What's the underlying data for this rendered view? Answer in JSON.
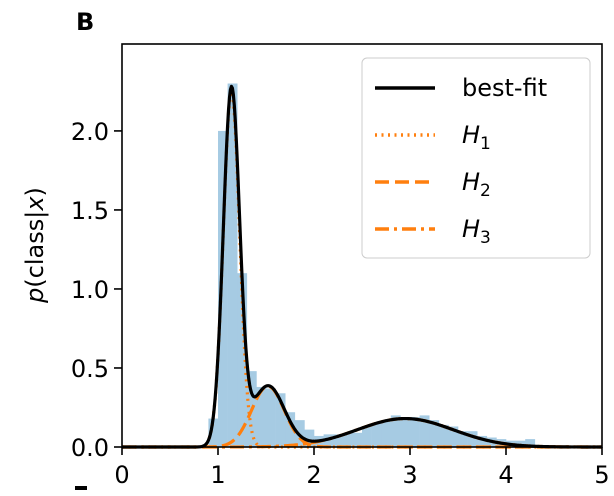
{
  "panel_label": "B",
  "chart_data": {
    "type": "histogram",
    "xlabel": "",
    "ylabel": "p(class|x)",
    "xlim": [
      0,
      5
    ],
    "ylim": [
      0,
      2.55
    ],
    "xticks": [
      "0",
      "1",
      "2",
      "3",
      "4",
      "5"
    ],
    "yticks": [
      "0.0",
      "0.5",
      "1.0",
      "1.5",
      "2.0"
    ],
    "grid": false,
    "legend_placement": "top-right",
    "colors": {
      "histogram": "#a6cbe3",
      "best_fit": "#000000",
      "components": "#ff7f0e"
    },
    "histogram": {
      "bin_width": 0.1,
      "bins": [
        {
          "x0": 0.9,
          "value": 0.18
        },
        {
          "x0": 1.0,
          "value": 2.0
        },
        {
          "x0": 1.1,
          "value": 2.3
        },
        {
          "x0": 1.2,
          "value": 1.1
        },
        {
          "x0": 1.3,
          "value": 0.48
        },
        {
          "x0": 1.4,
          "value": 0.38
        },
        {
          "x0": 1.5,
          "value": 0.37
        },
        {
          "x0": 1.6,
          "value": 0.34
        },
        {
          "x0": 1.7,
          "value": 0.22
        },
        {
          "x0": 1.8,
          "value": 0.17
        },
        {
          "x0": 1.9,
          "value": 0.11
        },
        {
          "x0": 2.0,
          "value": 0.07
        },
        {
          "x0": 2.1,
          "value": 0.08
        },
        {
          "x0": 2.2,
          "value": 0.08
        },
        {
          "x0": 2.3,
          "value": 0.09
        },
        {
          "x0": 2.4,
          "value": 0.09
        },
        {
          "x0": 2.5,
          "value": 0.13
        },
        {
          "x0": 2.6,
          "value": 0.15
        },
        {
          "x0": 2.7,
          "value": 0.17
        },
        {
          "x0": 2.8,
          "value": 0.2
        },
        {
          "x0": 2.9,
          "value": 0.17
        },
        {
          "x0": 3.0,
          "value": 0.19
        },
        {
          "x0": 3.1,
          "value": 0.2
        },
        {
          "x0": 3.2,
          "value": 0.17
        },
        {
          "x0": 3.3,
          "value": 0.14
        },
        {
          "x0": 3.4,
          "value": 0.13
        },
        {
          "x0": 3.5,
          "value": 0.1
        },
        {
          "x0": 3.6,
          "value": 0.1
        },
        {
          "x0": 3.7,
          "value": 0.07
        },
        {
          "x0": 3.8,
          "value": 0.06
        },
        {
          "x0": 3.9,
          "value": 0.05
        },
        {
          "x0": 4.0,
          "value": 0.04
        },
        {
          "x0": 4.1,
          "value": 0.04
        },
        {
          "x0": 4.2,
          "value": 0.05
        },
        {
          "x0": 4.3,
          "value": 0.01
        }
      ]
    },
    "components": [
      {
        "name": "H1",
        "mean": 1.14,
        "sd": 0.085,
        "amplitude": 2.25
      },
      {
        "name": "H2",
        "mean": 1.52,
        "sd": 0.17,
        "amplitude": 0.385
      },
      {
        "name": "H3",
        "mean": 2.95,
        "sd": 0.5,
        "amplitude": 0.18
      }
    ],
    "series": [
      {
        "name": "best-fit",
        "style": "solid"
      },
      {
        "name": "H1",
        "style": "dotted"
      },
      {
        "name": "H2",
        "style": "dashed"
      },
      {
        "name": "H3",
        "style": "dashdot"
      }
    ],
    "legend": [
      {
        "label": "best-fit",
        "sub": ""
      },
      {
        "label": "H",
        "sub": "1"
      },
      {
        "label": "H",
        "sub": "2"
      },
      {
        "label": "H",
        "sub": "3"
      }
    ]
  }
}
